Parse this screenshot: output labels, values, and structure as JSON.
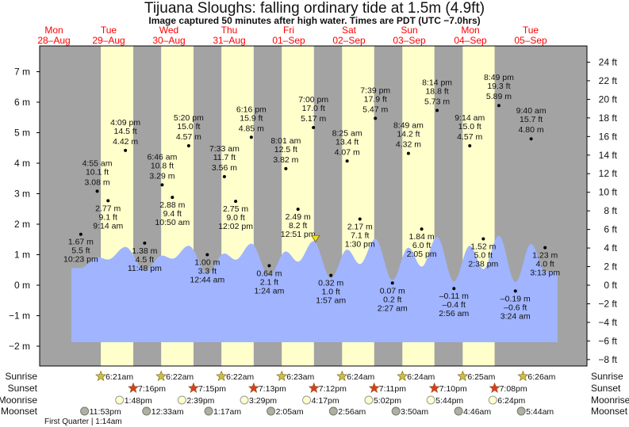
{
  "header": {
    "title": "Tijuana Sloughs: falling  ordinary tide at 1.5m (4.9ft)",
    "subtitle": "Image captured 50 minutes after high water. Times are PDT (UTC −7.0hrs)"
  },
  "colors": {
    "night": "#a3a3a3",
    "day": "#ffffcc",
    "water": "#a0b4ff",
    "day_label": "#ff0000",
    "sunset_star": "#e03a1e",
    "sunrise_star": "#c8c040"
  },
  "days": [
    {
      "dow": "Mon",
      "date": "28–Aug"
    },
    {
      "dow": "Tue",
      "date": "29–Aug"
    },
    {
      "dow": "Wed",
      "date": "30–Aug"
    },
    {
      "dow": "Thu",
      "date": "31–Aug"
    },
    {
      "dow": "Fri",
      "date": "01–Sep"
    },
    {
      "dow": "Sat",
      "date": "02–Sep"
    },
    {
      "dow": "Sun",
      "date": "03–Sep"
    },
    {
      "dow": "Mon",
      "date": "04–Sep"
    },
    {
      "dow": "Tue",
      "date": "05–Sep"
    }
  ],
  "chart_data": {
    "type": "area",
    "title": "Tijuana Sloughs: falling  ordinary tide at 1.5m (4.9ft)",
    "y_left": {
      "unit": "m",
      "range": [
        -2,
        7
      ],
      "ticks": [
        "7 m",
        "6 m",
        "5 m",
        "4 m",
        "3 m",
        "2 m",
        "1 m",
        "0 m",
        "−1 m",
        "−2 m"
      ]
    },
    "y_right": {
      "unit": "ft",
      "range": [
        -8,
        24
      ],
      "ticks": [
        "24 ft",
        "22 ft",
        "20 ft",
        "18 ft",
        "16 ft",
        "14 ft",
        "12 ft",
        "10 ft",
        "8 ft",
        "6 ft",
        "4 ft",
        "2 ft",
        "0 ft",
        "−2 ft",
        "−4 ft",
        "−6 ft",
        "−8 ft"
      ]
    },
    "current": {
      "level_m": 1.5,
      "day": 4,
      "time": "7:50pm"
    },
    "extremes": [
      {
        "day": 0,
        "type": "L",
        "time": "10:23 pm",
        "ft": "5.5 ft",
        "m": "1.67 m",
        "value": 1.67
      },
      {
        "day": 1,
        "type": "H",
        "time": "4:55 am",
        "ft": "10.1 ft",
        "m": "3.08 m",
        "value": 3.08
      },
      {
        "day": 1,
        "type": "L",
        "time": "9:14 am",
        "ft": "9.1 ft",
        "m": "2.77 m",
        "value": 2.77
      },
      {
        "day": 1,
        "type": "H",
        "time": "4:09 pm",
        "ft": "14.5 ft",
        "m": "4.42 m",
        "value": 4.42
      },
      {
        "day": 1,
        "type": "L",
        "time": "11:48 pm",
        "ft": "4.5 ft",
        "m": "1.38 m",
        "value": 1.38
      },
      {
        "day": 2,
        "type": "H",
        "time": "6:46 am",
        "ft": "10.8 ft",
        "m": "3.29 m",
        "value": 3.29
      },
      {
        "day": 2,
        "type": "L",
        "time": "10:50 am",
        "ft": "9.4 ft",
        "m": "2.88 m",
        "value": 2.88
      },
      {
        "day": 2,
        "type": "H",
        "time": "5:20 pm",
        "ft": "15.0 ft",
        "m": "4.57 m",
        "value": 4.57
      },
      {
        "day": 3,
        "type": "L",
        "time": "12:44 am",
        "ft": "3.3 ft",
        "m": "1.00 m",
        "value": 1.0
      },
      {
        "day": 3,
        "type": "H",
        "time": "7:33 am",
        "ft": "11.7 ft",
        "m": "3.56 m",
        "value": 3.56
      },
      {
        "day": 3,
        "type": "L",
        "time": "12:02 pm",
        "ft": "9.0 ft",
        "m": "2.75 m",
        "value": 2.75
      },
      {
        "day": 3,
        "type": "H",
        "time": "6:16 pm",
        "ft": "15.9 ft",
        "m": "4.85 m",
        "value": 4.85
      },
      {
        "day": 4,
        "type": "L",
        "time": "1:24 am",
        "ft": "2.1 ft",
        "m": "0.64 m",
        "value": 0.64
      },
      {
        "day": 4,
        "type": "H",
        "time": "8:01 am",
        "ft": "12.5 ft",
        "m": "3.82 m",
        "value": 3.82
      },
      {
        "day": 4,
        "type": "L",
        "time": "12:51 pm",
        "ft": "8.2 ft",
        "m": "2.49 m",
        "value": 2.49
      },
      {
        "day": 4,
        "type": "H",
        "time": "7:00 pm",
        "ft": "17.0 ft",
        "m": "5.17 m",
        "value": 5.17
      },
      {
        "day": 5,
        "type": "L",
        "time": "1:57 am",
        "ft": "1.0 ft",
        "m": "0.32 m",
        "value": 0.32
      },
      {
        "day": 5,
        "type": "H",
        "time": "8:25 am",
        "ft": "13.4 ft",
        "m": "4.07 m",
        "value": 4.07
      },
      {
        "day": 5,
        "type": "L",
        "time": "1:30 pm",
        "ft": "7.1 ft",
        "m": "2.17 m",
        "value": 2.17
      },
      {
        "day": 5,
        "type": "H",
        "time": "7:39 pm",
        "ft": "17.9 ft",
        "m": "5.47 m",
        "value": 5.47
      },
      {
        "day": 6,
        "type": "L",
        "time": "2:27 am",
        "ft": "0.2 ft",
        "m": "0.07 m",
        "value": 0.07
      },
      {
        "day": 6,
        "type": "H",
        "time": "8:49 am",
        "ft": "14.2 ft",
        "m": "4.32 m",
        "value": 4.32
      },
      {
        "day": 6,
        "type": "L",
        "time": "2:05 pm",
        "ft": "6.0 ft",
        "m": "1.84 m",
        "value": 1.84
      },
      {
        "day": 6,
        "type": "H",
        "time": "8:14 pm",
        "ft": "18.8 ft",
        "m": "5.73 m",
        "value": 5.73
      },
      {
        "day": 7,
        "type": "L",
        "time": "2:56 am",
        "ft": "–0.4 ft",
        "m": "–0.11 m",
        "value": -0.11
      },
      {
        "day": 7,
        "type": "H",
        "time": "9:14 am",
        "ft": "15.0 ft",
        "m": "4.57 m",
        "value": 4.57
      },
      {
        "day": 7,
        "type": "L",
        "time": "2:38 pm",
        "ft": "5.0 ft",
        "m": "1.52 m",
        "value": 1.52
      },
      {
        "day": 7,
        "type": "H",
        "time": "8:49 pm",
        "ft": "19.3 ft",
        "m": "5.89 m",
        "value": 5.89
      },
      {
        "day": 8,
        "type": "L",
        "time": "3:24 am",
        "ft": "–0.6 ft",
        "m": "–0.19 m",
        "value": -0.19
      },
      {
        "day": 8,
        "type": "H",
        "time": "9:40 am",
        "ft": "15.7 ft",
        "m": "4.80 m",
        "value": 4.8
      },
      {
        "day": 8,
        "type": "L",
        "time": "3:13 pm",
        "ft": "4.0 ft",
        "m": "1.23 m",
        "value": 1.23
      }
    ]
  },
  "astro": {
    "row_labels": {
      "sunrise": "Sunrise",
      "sunset": "Sunset",
      "moonrise": "Moonrise",
      "moonset": "Moonset"
    },
    "sunrise": [
      {
        "day": 1,
        "time": "6:21am"
      },
      {
        "day": 2,
        "time": "6:22am"
      },
      {
        "day": 3,
        "time": "6:22am"
      },
      {
        "day": 4,
        "time": "6:23am"
      },
      {
        "day": 5,
        "time": "6:24am"
      },
      {
        "day": 6,
        "time": "6:24am"
      },
      {
        "day": 7,
        "time": "6:25am"
      },
      {
        "day": 8,
        "time": "6:26am"
      }
    ],
    "sunset": [
      {
        "day": 1,
        "time": "7:16pm"
      },
      {
        "day": 2,
        "time": "7:15pm"
      },
      {
        "day": 3,
        "time": "7:13pm"
      },
      {
        "day": 4,
        "time": "7:12pm"
      },
      {
        "day": 5,
        "time": "7:11pm"
      },
      {
        "day": 6,
        "time": "7:10pm"
      },
      {
        "day": 7,
        "time": "7:08pm"
      }
    ],
    "moonrise": [
      {
        "day": 1,
        "time": "1:48pm"
      },
      {
        "day": 2,
        "time": "2:39pm"
      },
      {
        "day": 3,
        "time": "3:29pm"
      },
      {
        "day": 4,
        "time": "4:17pm"
      },
      {
        "day": 5,
        "time": "5:02pm"
      },
      {
        "day": 6,
        "time": "5:44pm"
      },
      {
        "day": 7,
        "time": "6:24pm"
      }
    ],
    "moonset": [
      {
        "day": 0,
        "time": "11:53pm"
      },
      {
        "day": 2,
        "time": "12:33am"
      },
      {
        "day": 3,
        "time": "1:17am"
      },
      {
        "day": 4,
        "time": "2:05am"
      },
      {
        "day": 5,
        "time": "2:56am"
      },
      {
        "day": 6,
        "time": "3:50am"
      },
      {
        "day": 7,
        "time": "4:46am"
      },
      {
        "day": 8,
        "time": "5:44am"
      }
    ],
    "moon_phase": "First Quarter | 1:14am"
  }
}
